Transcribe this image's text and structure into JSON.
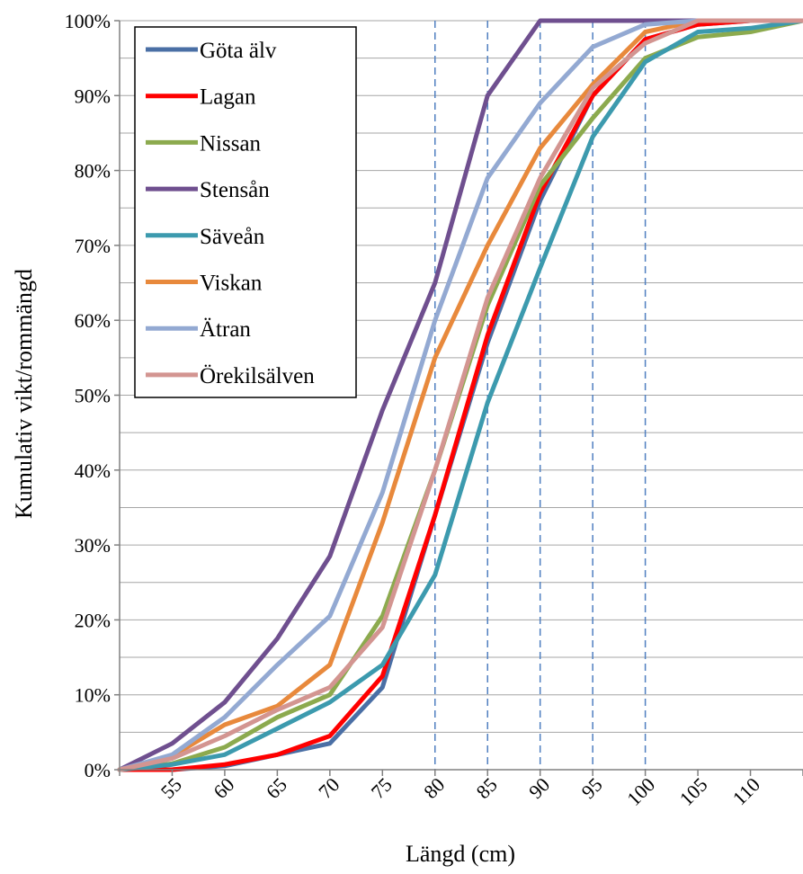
{
  "chart_data": {
    "type": "line",
    "xlabel": "Längd (cm)",
    "ylabel": "Kumulativ vikt/rommängd",
    "x": [
      50,
      55,
      60,
      65,
      70,
      75,
      80,
      85,
      90,
      95,
      100,
      105,
      110,
      115
    ],
    "xlim": [
      50,
      115
    ],
    "ylim": [
      0,
      100
    ],
    "x_ticks": [
      "55",
      "60",
      "65",
      "70",
      "75",
      "80",
      "85",
      "90",
      "95",
      "100",
      "105",
      "110"
    ],
    "y_ticks": [
      "0%",
      "10%",
      "20%",
      "30%",
      "40%",
      "50%",
      "60%",
      "70%",
      "80%",
      "90%",
      "100%"
    ],
    "reference_lines_x": [
      80,
      85,
      90,
      95,
      100
    ],
    "grid": true,
    "legend_position": "top-left",
    "series": [
      {
        "name": "Göta älv",
        "color": "#4a6fa5",
        "values": [
          0,
          0,
          0.5,
          2,
          3.5,
          11,
          34,
          57,
          76,
          90,
          97.5,
          99.5,
          100,
          100
        ]
      },
      {
        "name": "Lagan",
        "color": "#ff0000",
        "values": [
          0,
          0,
          0.7,
          2,
          4.5,
          12.5,
          34,
          58,
          77,
          90,
          97.5,
          99.5,
          100,
          100
        ]
      },
      {
        "name": "Nissan",
        "color": "#8caa4e",
        "values": [
          0,
          0.8,
          3,
          7,
          10,
          20.5,
          40,
          62,
          78,
          87,
          95,
          97.8,
          98.5,
          100
        ]
      },
      {
        "name": "Stensån",
        "color": "#6f4f8f",
        "values": [
          0,
          3.5,
          9,
          17.5,
          28.5,
          48,
          65,
          90,
          100,
          100,
          100,
          100,
          100,
          100
        ]
      },
      {
        "name": "Säveån",
        "color": "#3c9aae",
        "values": [
          0,
          0.7,
          2,
          5.5,
          9,
          14,
          26,
          49,
          67,
          84.5,
          94.5,
          98.5,
          99,
          100
        ]
      },
      {
        "name": "Viskan",
        "color": "#e8893c",
        "values": [
          0,
          1.8,
          6,
          8.5,
          14,
          33,
          55,
          70,
          83,
          91.5,
          98.5,
          100,
          100,
          100
        ]
      },
      {
        "name": "Ätran",
        "color": "#93a9d2",
        "values": [
          0,
          2,
          7,
          14,
          20.5,
          37,
          60,
          79,
          89,
          96.5,
          99.5,
          100,
          100,
          100
        ]
      },
      {
        "name": "Örekilsälven",
        "color": "#d39591",
        "values": [
          0,
          1.5,
          4.5,
          8,
          11,
          19,
          40,
          63,
          79,
          91,
          97,
          100,
          100,
          100
        ]
      }
    ]
  }
}
